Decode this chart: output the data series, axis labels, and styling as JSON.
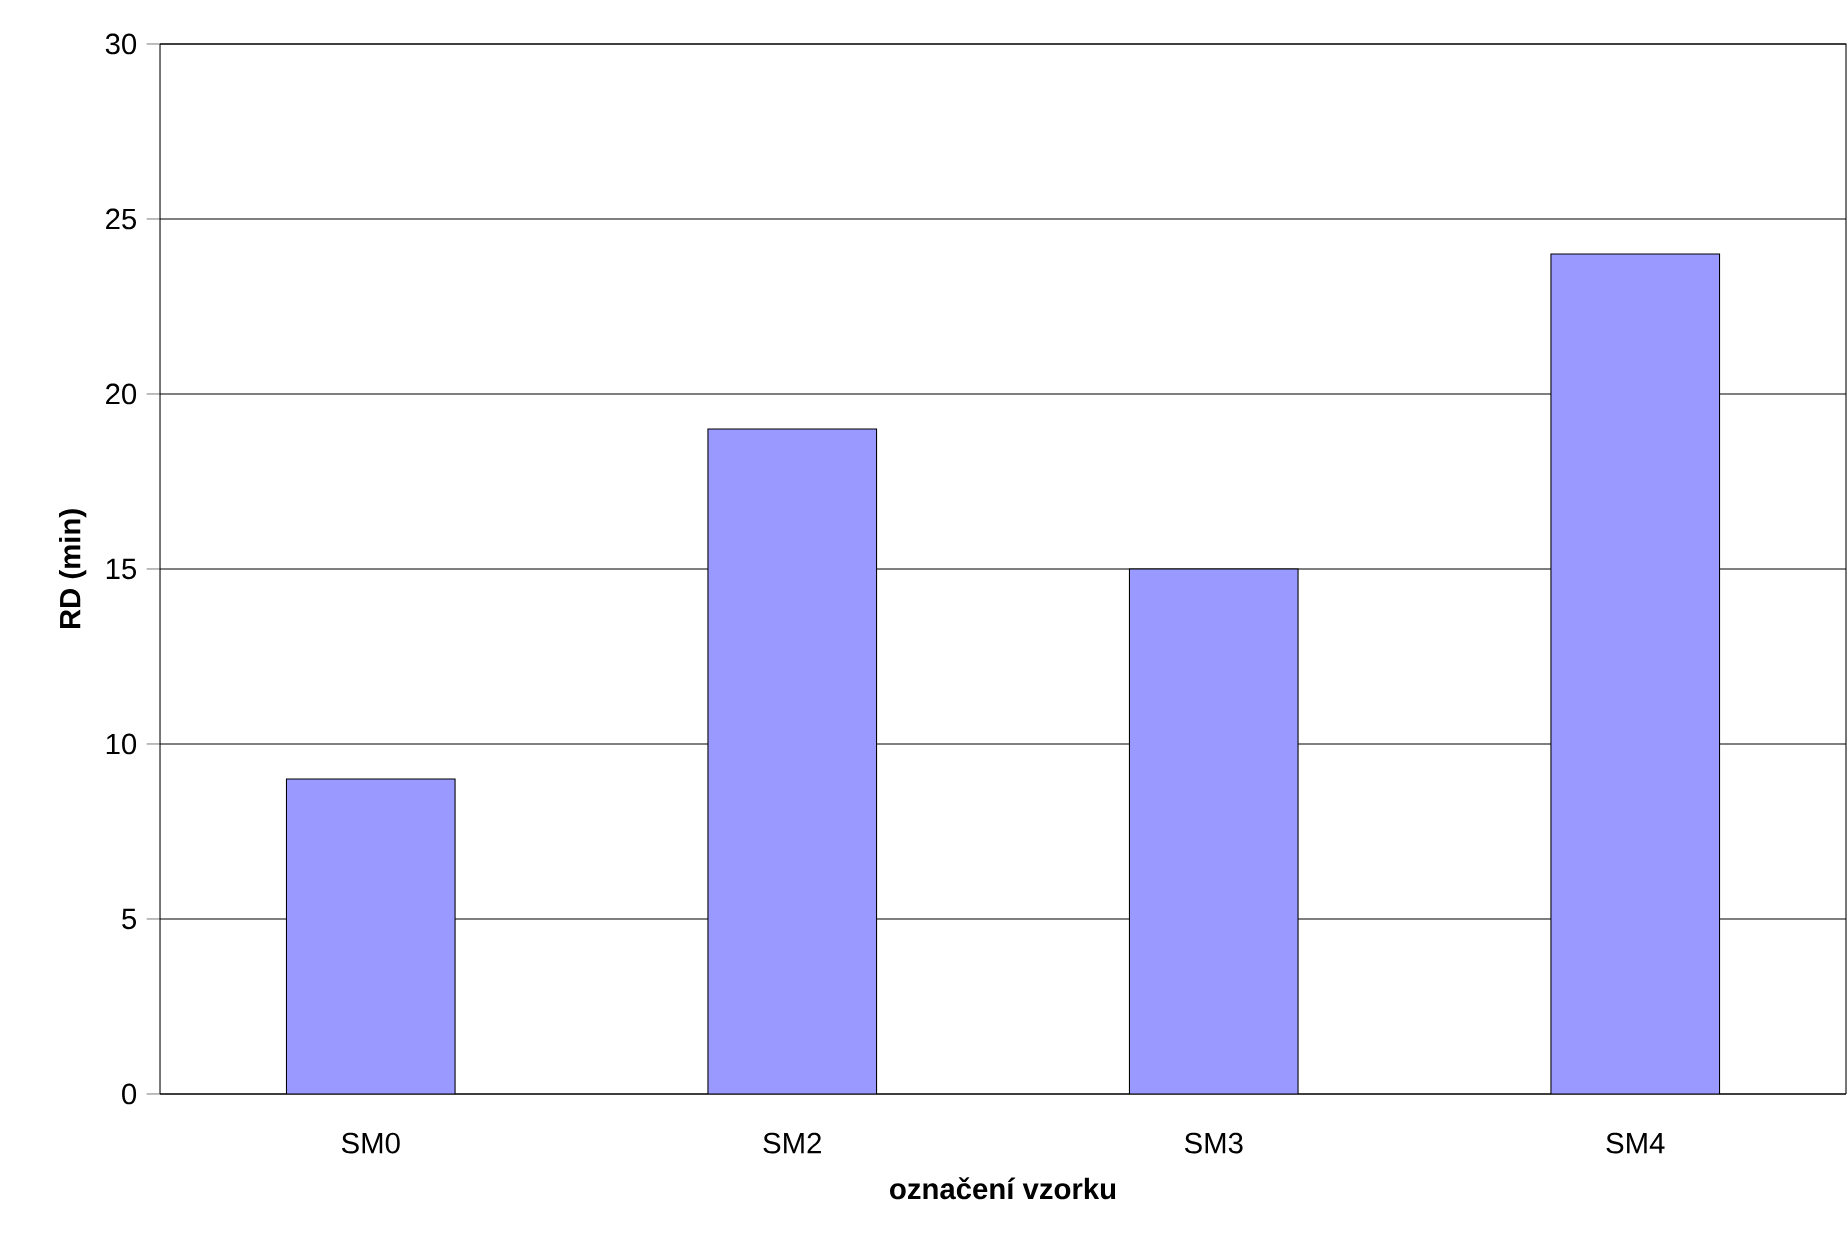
{
  "chart_data": {
    "type": "bar",
    "xlabel": "označení vzorku",
    "ylabel": "RD (min)",
    "categories": [
      "SM0",
      "SM2",
      "SM3",
      "SM4"
    ],
    "values": [
      9,
      19,
      15,
      24
    ],
    "color": "#9999ff",
    "ylim": [
      0,
      30
    ],
    "yticks": [
      0,
      5,
      10,
      15,
      20,
      25,
      30
    ],
    "grid": "y"
  }
}
